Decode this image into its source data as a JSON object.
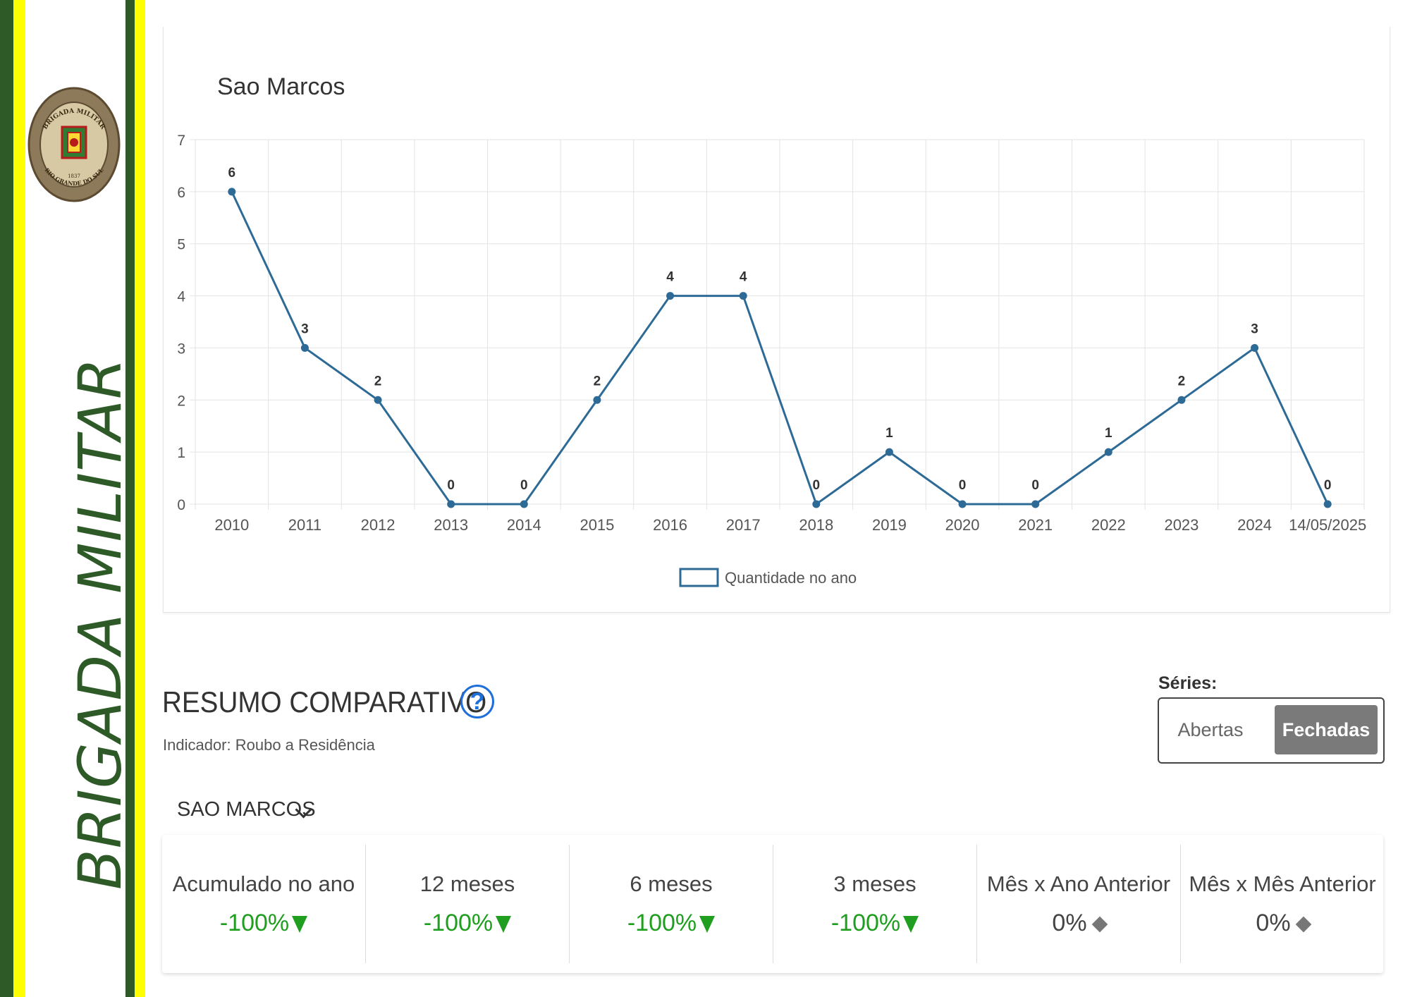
{
  "brand": {
    "vertical_text": "BRIGADA MILITAR",
    "emblem_text_top": "BRIGADA MILITAR",
    "emblem_text_bottom": "RIO GRANDE DO SUL",
    "emblem_year": "1837",
    "colors": {
      "green": "#2d5a27",
      "yellow": "#ffff00"
    }
  },
  "chart_data": {
    "type": "line",
    "title": "Sao Marcos",
    "categories": [
      "2010",
      "2011",
      "2012",
      "2013",
      "2014",
      "2015",
      "2016",
      "2017",
      "2018",
      "2019",
      "2020",
      "2021",
      "2022",
      "2023",
      "2024",
      "14/05/2025"
    ],
    "series": [
      {
        "name": "Quantidade no ano",
        "values": [
          6,
          3,
          2,
          0,
          0,
          2,
          4,
          4,
          0,
          1,
          0,
          0,
          1,
          2,
          3,
          0
        ],
        "color": "#2e6a96"
      }
    ],
    "ylim": [
      0,
      7
    ],
    "yticks": [
      0,
      1,
      2,
      3,
      4,
      5,
      6,
      7
    ],
    "grid": true,
    "legend": "bottom",
    "data_labels": true
  },
  "summary": {
    "title": "RESUMO COMPARATIVO",
    "help_icon": "?",
    "indicator": "Indicador: Roubo a Residência",
    "series_label": "Séries:",
    "series_options": [
      "Abertas",
      "Fechadas"
    ],
    "series_selected": "Fechadas",
    "region": "SAO MARCOS",
    "kpis": [
      {
        "label": "Acumulado no ano",
        "value": "-100%",
        "trend": "down",
        "icon": "triangle-down-icon"
      },
      {
        "label": "12 meses",
        "value": "-100%",
        "trend": "down",
        "icon": "triangle-down-icon"
      },
      {
        "label": "6 meses",
        "value": "-100%",
        "trend": "down",
        "icon": "triangle-down-icon"
      },
      {
        "label": "3 meses",
        "value": "-100%",
        "trend": "down",
        "icon": "triangle-down-icon"
      },
      {
        "label": "Mês x Ano Anterior",
        "value": "0%",
        "trend": "neutral",
        "icon": "diamond-icon"
      },
      {
        "label": "Mês x Mês Anterior",
        "value": "0%",
        "trend": "neutral",
        "icon": "diamond-icon"
      }
    ],
    "colors": {
      "down": "#1f9e1f",
      "neutral": "#777777",
      "help": "#1e6fd9"
    }
  }
}
